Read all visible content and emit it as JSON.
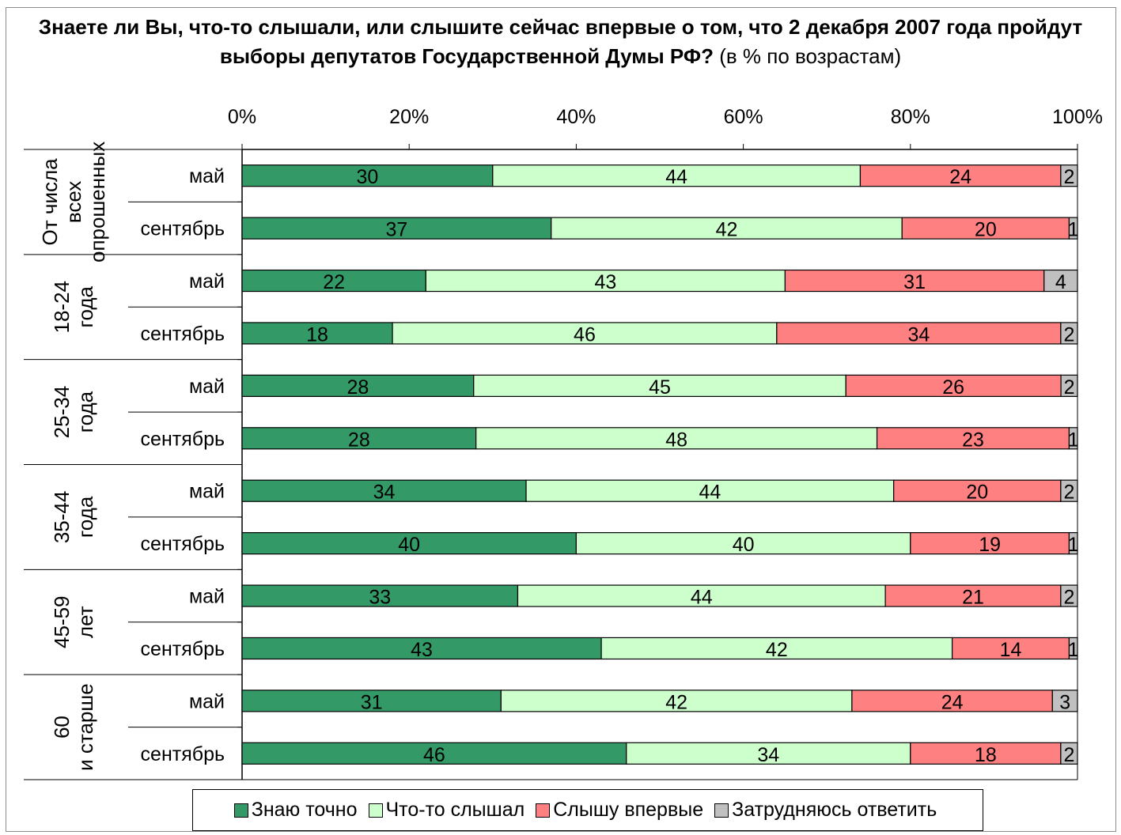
{
  "title_bold": "Знаете ли Вы, что-то слышали, или слышите сейчас впервые о том, что 2 декабря 2007 года пройдут выборы депутатов Государственной Думы РФ?",
  "title_rest": " (в % по возрастам)",
  "colors": {
    "znayu": "#339966",
    "slyshal": "#ccffcc",
    "vpervye": "#ff8080",
    "zatrud": "#c0c0c0"
  },
  "chart_data": {
    "type": "bar",
    "orientation": "horizontal-stacked-100",
    "xlim": [
      0,
      100
    ],
    "x_ticks": [
      "0%",
      "20%",
      "40%",
      "60%",
      "80%",
      "100%"
    ],
    "legend_position": "bottom",
    "series_names": [
      "Знаю точно",
      "Что-то слышал",
      "Слышу впервые",
      "Затрудняюсь ответить"
    ],
    "groups": [
      {
        "label": "От числа всех опрошенных",
        "rows": [
          {
            "label": "май",
            "values": [
              30,
              44,
              24,
              2
            ]
          },
          {
            "label": "сентябрь",
            "values": [
              37,
              42,
              20,
              1
            ]
          }
        ]
      },
      {
        "label": "18-24 года",
        "rows": [
          {
            "label": "май",
            "values": [
              22,
              43,
              31,
              4
            ]
          },
          {
            "label": "сентябрь",
            "values": [
              18,
              46,
              34,
              2
            ]
          }
        ]
      },
      {
        "label": "25-34 года",
        "rows": [
          {
            "label": "май",
            "values": [
              28,
              45,
              26,
              2
            ]
          },
          {
            "label": "сентябрь",
            "values": [
              28,
              48,
              23,
              1
            ]
          }
        ]
      },
      {
        "label": "35-44 года",
        "rows": [
          {
            "label": "май",
            "values": [
              34,
              44,
              20,
              2
            ]
          },
          {
            "label": "сентябрь",
            "values": [
              40,
              40,
              19,
              1
            ]
          }
        ]
      },
      {
        "label": "45-59 лет",
        "rows": [
          {
            "label": "май",
            "values": [
              33,
              44,
              21,
              2
            ]
          },
          {
            "label": "сентябрь",
            "values": [
              43,
              42,
              14,
              1
            ]
          }
        ]
      },
      {
        "label": "60 и старше",
        "rows": [
          {
            "label": "май",
            "values": [
              31,
              42,
              24,
              3
            ]
          },
          {
            "label": "сентябрь",
            "values": [
              46,
              34,
              18,
              2
            ]
          }
        ]
      }
    ]
  }
}
